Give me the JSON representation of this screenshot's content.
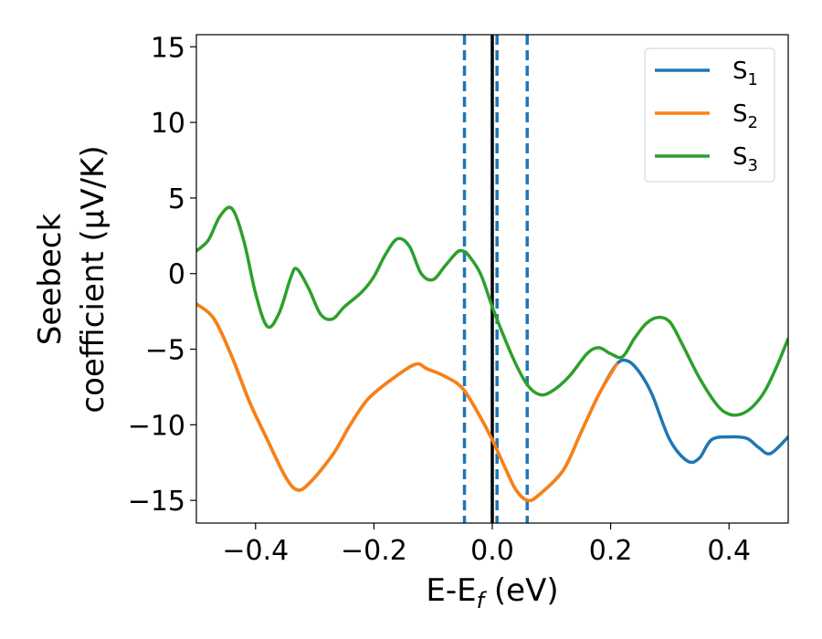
{
  "chart_data": {
    "type": "line",
    "title": "",
    "xlabel": {
      "main": "E-E",
      "sub": "f",
      "unit": " (eV)"
    },
    "ylabel": {
      "line1": "Seebeck",
      "line2": "coefficient  (μV/K)"
    },
    "xlim": [
      -0.5,
      0.5
    ],
    "ylim": [
      -16.5,
      15.8
    ],
    "xticks": [
      -0.4,
      -0.2,
      0.0,
      0.2,
      0.4
    ],
    "xtick_labels": [
      "−0.4",
      "−0.2",
      "0.0",
      "0.2",
      "0.4"
    ],
    "yticks": [
      15,
      10,
      5,
      0,
      -5,
      -10,
      -15
    ],
    "ytick_labels": [
      "15",
      "10",
      "5",
      "0",
      "−5",
      "−10",
      "−15"
    ],
    "grid": false,
    "legend_position": "top-right",
    "vertical_lines": [
      {
        "x": 0.0,
        "style": "solid",
        "color": "#000000"
      },
      {
        "x": -0.047,
        "style": "dashed",
        "color": "#1f77b4"
      },
      {
        "x": 0.008,
        "style": "dashed",
        "color": "#1f77b4"
      },
      {
        "x": 0.059,
        "style": "dashed",
        "color": "#1f77b4"
      }
    ],
    "series": [
      {
        "name": "S",
        "sub": "1",
        "color": "#1f77b4",
        "points": [
          [
            -0.5,
            -2.0
          ],
          [
            -0.47,
            -3.0
          ],
          [
            -0.44,
            -5.5
          ],
          [
            -0.41,
            -8.5
          ],
          [
            -0.38,
            -11.0
          ],
          [
            -0.35,
            -13.4
          ],
          [
            -0.33,
            -14.3
          ],
          [
            -0.31,
            -13.9
          ],
          [
            -0.27,
            -12.0
          ],
          [
            -0.24,
            -10.0
          ],
          [
            -0.21,
            -8.3
          ],
          [
            -0.17,
            -7.0
          ],
          [
            -0.13,
            -6.0
          ],
          [
            -0.11,
            -6.3
          ],
          [
            -0.08,
            -6.8
          ],
          [
            -0.05,
            -7.6
          ],
          [
            -0.02,
            -9.5
          ],
          [
            0.0,
            -11.0
          ],
          [
            0.02,
            -12.7
          ],
          [
            0.04,
            -14.3
          ],
          [
            0.06,
            -15.0
          ],
          [
            0.08,
            -14.6
          ],
          [
            0.12,
            -13.0
          ],
          [
            0.15,
            -10.5
          ],
          [
            0.18,
            -8.0
          ],
          [
            0.21,
            -6.0
          ],
          [
            0.23,
            -5.8
          ],
          [
            0.25,
            -6.6
          ],
          [
            0.27,
            -8.0
          ],
          [
            0.3,
            -11.0
          ],
          [
            0.33,
            -12.4
          ],
          [
            0.35,
            -12.2
          ],
          [
            0.37,
            -11.0
          ],
          [
            0.4,
            -10.8
          ],
          [
            0.43,
            -10.9
          ],
          [
            0.45,
            -11.5
          ],
          [
            0.47,
            -11.9
          ],
          [
            0.5,
            -10.8
          ]
        ]
      },
      {
        "name": "S",
        "sub": "2",
        "color": "#ff7f0e",
        "points": [
          [
            -0.5,
            -2.0
          ],
          [
            -0.47,
            -3.0
          ],
          [
            -0.44,
            -5.5
          ],
          [
            -0.41,
            -8.5
          ],
          [
            -0.38,
            -11.0
          ],
          [
            -0.35,
            -13.4
          ],
          [
            -0.33,
            -14.3
          ],
          [
            -0.31,
            -13.9
          ],
          [
            -0.27,
            -12.0
          ],
          [
            -0.24,
            -10.0
          ],
          [
            -0.21,
            -8.3
          ],
          [
            -0.17,
            -7.0
          ],
          [
            -0.13,
            -6.0
          ],
          [
            -0.11,
            -6.3
          ],
          [
            -0.08,
            -6.8
          ],
          [
            -0.05,
            -7.6
          ],
          [
            -0.02,
            -9.5
          ],
          [
            0.0,
            -11.0
          ],
          [
            0.02,
            -12.7
          ],
          [
            0.04,
            -14.3
          ],
          [
            0.06,
            -15.0
          ],
          [
            0.08,
            -14.6
          ],
          [
            0.12,
            -13.0
          ],
          [
            0.15,
            -10.5
          ],
          [
            0.18,
            -8.0
          ],
          [
            0.21,
            -6.0
          ]
        ]
      },
      {
        "name": "S",
        "sub": "3",
        "color": "#2ca02c",
        "points": [
          [
            -0.5,
            1.5
          ],
          [
            -0.48,
            2.2
          ],
          [
            -0.46,
            3.8
          ],
          [
            -0.44,
            4.3
          ],
          [
            -0.42,
            2.2
          ],
          [
            -0.4,
            -1.3
          ],
          [
            -0.38,
            -3.5
          ],
          [
            -0.36,
            -2.6
          ],
          [
            -0.34,
            -0.2
          ],
          [
            -0.33,
            0.3
          ],
          [
            -0.31,
            -1.0
          ],
          [
            -0.29,
            -2.7
          ],
          [
            -0.27,
            -3.0
          ],
          [
            -0.25,
            -2.2
          ],
          [
            -0.22,
            -1.2
          ],
          [
            -0.2,
            -0.2
          ],
          [
            -0.18,
            1.3
          ],
          [
            -0.16,
            2.3
          ],
          [
            -0.14,
            1.8
          ],
          [
            -0.12,
            0.0
          ],
          [
            -0.1,
            -0.4
          ],
          [
            -0.08,
            0.5
          ],
          [
            -0.06,
            1.4
          ],
          [
            -0.05,
            1.5
          ],
          [
            -0.04,
            1.2
          ],
          [
            -0.02,
            0.0
          ],
          [
            0.0,
            -2.2
          ],
          [
            0.02,
            -4.2
          ],
          [
            0.04,
            -6.0
          ],
          [
            0.06,
            -7.4
          ],
          [
            0.08,
            -8.0
          ],
          [
            0.1,
            -7.8
          ],
          [
            0.13,
            -6.8
          ],
          [
            0.16,
            -5.3
          ],
          [
            0.18,
            -4.9
          ],
          [
            0.2,
            -5.3
          ],
          [
            0.22,
            -5.5
          ],
          [
            0.24,
            -4.3
          ],
          [
            0.26,
            -3.3
          ],
          [
            0.28,
            -2.9
          ],
          [
            0.3,
            -3.2
          ],
          [
            0.32,
            -4.6
          ],
          [
            0.35,
            -6.9
          ],
          [
            0.38,
            -8.7
          ],
          [
            0.4,
            -9.3
          ],
          [
            0.42,
            -9.3
          ],
          [
            0.44,
            -8.8
          ],
          [
            0.46,
            -7.8
          ],
          [
            0.48,
            -6.2
          ],
          [
            0.5,
            -4.3
          ]
        ]
      }
    ]
  }
}
